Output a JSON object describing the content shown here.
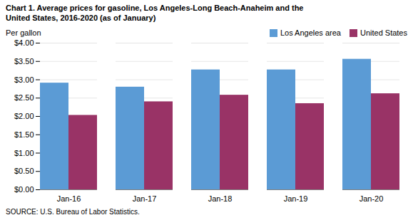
{
  "chart_data": {
    "type": "bar",
    "title": "Chart 1. Average prices for gasoline, Los Angeles-Long Beach-Anaheim and the",
    "subtitle": "United States, 2016-2020  (as of January)",
    "ylabel": "Per gallon",
    "source": "SOURCE: U.S. Bureau of Labor Statistics.",
    "categories": [
      "Jan-16",
      "Jan-17",
      "Jan-18",
      "Jan-19",
      "Jan-20"
    ],
    "series": [
      {
        "name": "Los Angeles area",
        "color": "#5B9BD5",
        "values": [
          2.91,
          2.8,
          3.27,
          3.27,
          3.56
        ]
      },
      {
        "name": "United States",
        "color": "#993366",
        "values": [
          2.03,
          2.4,
          2.58,
          2.35,
          2.62
        ]
      }
    ],
    "ylim": [
      0.0,
      4.0
    ],
    "yticks": [
      {
        "value": 0.0,
        "label": "$0.00"
      },
      {
        "value": 0.5,
        "label": "$0.50"
      },
      {
        "value": 1.0,
        "label": "$1.00"
      },
      {
        "value": 1.5,
        "label": "$1.50"
      },
      {
        "value": 2.0,
        "label": "$2.00"
      },
      {
        "value": 2.5,
        "label": "$2.50"
      },
      {
        "value": 3.0,
        "label": "$3.00"
      },
      {
        "value": 3.5,
        "label": "$3.50"
      },
      {
        "value": 4.0,
        "label": "$4.00"
      }
    ],
    "grid": true,
    "legend": "upper right"
  }
}
